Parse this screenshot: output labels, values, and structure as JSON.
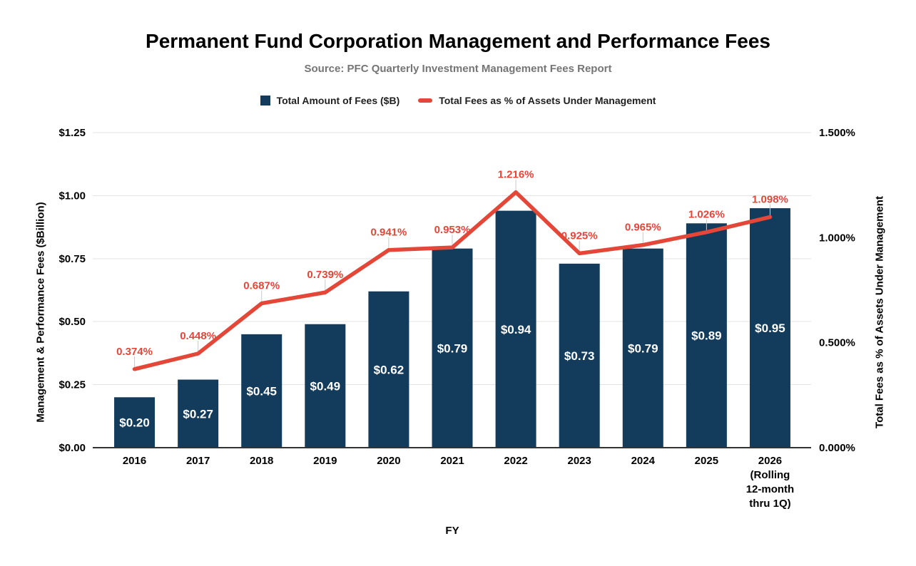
{
  "colors": {
    "background": "#ffffff",
    "bar": "#123b5c",
    "line": "#e44638",
    "grid": "#e3e3e3",
    "axis_line": "#333333",
    "stem": "#c9c9c9",
    "tick_text": "#000000",
    "subtitle_text": "#757575",
    "legend_text": "#1f1f1f",
    "bar_label_text": "#ffffff"
  },
  "chart_data": {
    "type": "combo-bar-line",
    "title": "Permanent Fund Corporation Management and Performance Fees",
    "subtitle": "Source: PFC Quarterly Investment Management Fees Report",
    "xlabel": "FY",
    "legend_position": "top",
    "grid": true,
    "categories": [
      "2016",
      "2017",
      "2018",
      "2019",
      "2020",
      "2021",
      "2022",
      "2023",
      "2024",
      "2025",
      "2026 (Rolling 12-month thru 1Q)"
    ],
    "category_label_lines": [
      [
        "2016"
      ],
      [
        "2017"
      ],
      [
        "2018"
      ],
      [
        "2019"
      ],
      [
        "2020"
      ],
      [
        "2021"
      ],
      [
        "2022"
      ],
      [
        "2023"
      ],
      [
        "2024"
      ],
      [
        "2025"
      ],
      [
        "2026",
        "(Rolling",
        "12-month",
        "thru 1Q)"
      ]
    ],
    "series": [
      {
        "name": "Total Amount of Fees ($B)",
        "type": "bar",
        "axis": "left",
        "color": "#123b5c",
        "values": [
          0.2,
          0.27,
          0.45,
          0.49,
          0.62,
          0.79,
          0.94,
          0.73,
          0.79,
          0.89,
          0.95
        ],
        "data_labels": [
          "$0.20",
          "$0.27",
          "$0.45",
          "$0.49",
          "$0.62",
          "$0.79",
          "$0.94",
          "$0.73",
          "$0.79",
          "$0.89",
          "$0.95"
        ]
      },
      {
        "name": "Total Fees as % of Assets Under Management",
        "type": "line",
        "axis": "right",
        "color": "#e44638",
        "values": [
          0.374,
          0.448,
          0.687,
          0.739,
          0.941,
          0.953,
          1.216,
          0.925,
          0.965,
          1.026,
          1.098
        ],
        "data_labels": [
          "0.374%",
          "0.448%",
          "0.687%",
          "0.739%",
          "0.941%",
          "0.953%",
          "1.216%",
          "0.925%",
          "0.965%",
          "1.026%",
          "1.098%"
        ]
      }
    ],
    "left_axis": {
      "title": "Management & Performance Fees ($Billion)",
      "ticks": [
        "$0.00",
        "$0.25",
        "$0.50",
        "$0.75",
        "$1.00",
        "$1.25"
      ],
      "tick_values": [
        0,
        0.25,
        0.5,
        0.75,
        1.0,
        1.25
      ],
      "range": [
        0,
        1.25
      ]
    },
    "right_axis": {
      "title": "Total Fees as % of Assets Under Management",
      "ticks": [
        "0.000%",
        "0.500%",
        "1.000%",
        "1.500%"
      ],
      "tick_values": [
        0,
        0.5,
        1.0,
        1.5
      ],
      "range": [
        0,
        1.5
      ]
    }
  }
}
